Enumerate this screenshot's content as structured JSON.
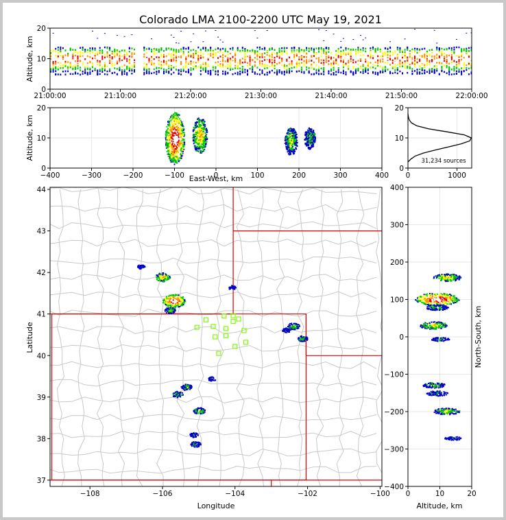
{
  "title": "Colorado LMA 2100-2200 UTC May 19, 2021",
  "colors": {
    "frame_bg": "#c8c8c8",
    "panel_bg": "#ffffff",
    "county_lines": "#c8c8c8",
    "state_lines": "#e00000",
    "stations": "#7cfc00",
    "density_ramp": [
      "#0000c8",
      "#00c800",
      "#ffff00",
      "#ff8c00",
      "#e00000",
      "#ffffff"
    ]
  },
  "chart_data": [
    {
      "id": "time-height",
      "type": "heatmap",
      "ylabel": "Altitude, km",
      "xlabel": "",
      "ylim": [
        0,
        20
      ],
      "y_ticks": [
        "0",
        "10",
        "20"
      ],
      "x_ticks": [
        "21:00:00",
        "21:10:00",
        "21:20:00",
        "21:30:00",
        "21:40:00",
        "21:50:00",
        "22:00:00"
      ],
      "x_range_min": [
        0,
        60
      ],
      "band_alt_range_km": [
        5,
        14
      ],
      "band_peak_alt_km": 10
    },
    {
      "id": "ew-height",
      "type": "heatmap",
      "xlabel": "East-West, km",
      "ylabel": "Altitude, km",
      "xlim": [
        -400,
        400
      ],
      "ylim": [
        0,
        20
      ],
      "x_ticks": [
        "−400",
        "−300",
        "−200",
        "−100",
        "0",
        "100",
        "200",
        "300",
        "400"
      ],
      "y_ticks": [
        "0",
        "10",
        "20"
      ],
      "clusters": [
        {
          "x": -100,
          "alt": 10,
          "intensity": 1.0
        },
        {
          "x": -40,
          "alt": 11,
          "intensity": 0.6
        },
        {
          "x": 180,
          "alt": 9,
          "intensity": 0.4
        },
        {
          "x": 225,
          "alt": 10,
          "intensity": 0.25
        }
      ]
    },
    {
      "id": "altitude-histogram",
      "type": "line",
      "xlim": [
        0,
        1300
      ],
      "ylim": [
        0,
        20
      ],
      "x_ticks": [
        "0",
        "1000"
      ],
      "y_ticks": [
        "0",
        "10",
        "20"
      ],
      "annotation": "31,234 sources",
      "points": [
        [
          0,
          2
        ],
        [
          60,
          3
        ],
        [
          150,
          4
        ],
        [
          320,
          5
        ],
        [
          560,
          6
        ],
        [
          820,
          7
        ],
        [
          1080,
          8
        ],
        [
          1260,
          9
        ],
        [
          1290,
          10
        ],
        [
          1150,
          11
        ],
        [
          800,
          12
        ],
        [
          420,
          13
        ],
        [
          180,
          14
        ],
        [
          70,
          15
        ],
        [
          25,
          16
        ],
        [
          8,
          17
        ],
        [
          0,
          18
        ]
      ]
    },
    {
      "id": "plan-view",
      "type": "scatter",
      "xlabel": "Longitude",
      "ylabel": "Latitude",
      "xlim": [
        -109.1,
        -99.95
      ],
      "ylim": [
        36.85,
        44.05
      ],
      "x_ticks": [
        "−108",
        "−106",
        "−104",
        "−102",
        "−100"
      ],
      "y_ticks": [
        "37",
        "38",
        "39",
        "40",
        "41",
        "42",
        "43",
        "44"
      ],
      "clusters": [
        {
          "lon": -105.7,
          "lat": 41.33,
          "intensity": 1.0
        },
        {
          "lon": -106.0,
          "lat": 41.9,
          "intensity": 0.55
        },
        {
          "lon": -105.8,
          "lat": 41.1,
          "intensity": 0.3
        },
        {
          "lon": -102.4,
          "lat": 40.72,
          "intensity": 0.35
        },
        {
          "lon": -102.15,
          "lat": 40.42,
          "intensity": 0.25
        },
        {
          "lon": -102.6,
          "lat": 40.62,
          "intensity": 0.15
        },
        {
          "lon": -105.35,
          "lat": 39.25,
          "intensity": 0.3
        },
        {
          "lon": -105.6,
          "lat": 39.08,
          "intensity": 0.3
        },
        {
          "lon": -105.0,
          "lat": 38.68,
          "intensity": 0.35
        },
        {
          "lon": -105.1,
          "lat": 37.88,
          "intensity": 0.25
        },
        {
          "lon": -105.15,
          "lat": 38.1,
          "intensity": 0.15
        },
        {
          "lon": -104.1,
          "lat": 41.65,
          "intensity": 0.1
        },
        {
          "lon": -106.6,
          "lat": 42.15,
          "intensity": 0.1
        },
        {
          "lon": -104.65,
          "lat": 39.45,
          "intensity": 0.1
        }
      ],
      "stations": [
        {
          "lon": -104.8,
          "lat": 40.86
        },
        {
          "lon": -104.3,
          "lat": 40.95
        },
        {
          "lon": -104.05,
          "lat": 40.96
        },
        {
          "lon": -103.9,
          "lat": 40.88
        },
        {
          "lon": -104.05,
          "lat": 40.82
        },
        {
          "lon": -105.05,
          "lat": 40.68
        },
        {
          "lon": -104.6,
          "lat": 40.7
        },
        {
          "lon": -104.25,
          "lat": 40.65
        },
        {
          "lon": -103.75,
          "lat": 40.6
        },
        {
          "lon": -104.55,
          "lat": 40.45
        },
        {
          "lon": -104.25,
          "lat": 40.48
        },
        {
          "lon": -103.7,
          "lat": 40.32
        },
        {
          "lon": -104.0,
          "lat": 40.22
        },
        {
          "lon": -104.45,
          "lat": 40.05
        }
      ]
    },
    {
      "id": "ns-height",
      "type": "heatmap",
      "xlabel": "Altitude, km",
      "ylabel": "North-South, km",
      "xlim": [
        0,
        20
      ],
      "ylim": [
        -400,
        400
      ],
      "x_ticks": [
        "0",
        "10",
        "20"
      ],
      "y_ticks": [
        "400",
        "300",
        "200",
        "100",
        "0",
        "−100",
        "−200",
        "−300",
        "−400"
      ],
      "clusters": [
        {
          "ns": 102,
          "alt": 9,
          "intensity": 1.0
        },
        {
          "ns": 160,
          "alt": 12,
          "intensity": 0.5
        },
        {
          "ns": 80,
          "alt": 9,
          "intensity": 0.3
        },
        {
          "ns": 32,
          "alt": 8,
          "intensity": 0.5
        },
        {
          "ns": -5,
          "alt": 10,
          "intensity": 0.15
        },
        {
          "ns": -128,
          "alt": 8,
          "intensity": 0.3
        },
        {
          "ns": -150,
          "alt": 9,
          "intensity": 0.25
        },
        {
          "ns": -198,
          "alt": 12,
          "intensity": 0.4
        },
        {
          "ns": -270,
          "alt": 14,
          "intensity": 0.1
        }
      ]
    }
  ]
}
